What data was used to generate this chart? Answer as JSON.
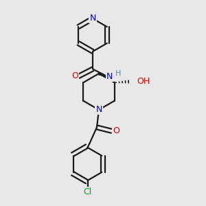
{
  "bg_color": "#e8e8e8",
  "bond_color": "#1a1a1a",
  "bond_width": 1.6,
  "atom_colors": {
    "N": "#0000cc",
    "O": "#dd0000",
    "Cl": "#00aa00",
    "H": "#558899",
    "C": "#1a1a1a"
  },
  "font_size": 8.5,
  "figsize": [
    3.0,
    3.0
  ],
  "dpi": 100
}
